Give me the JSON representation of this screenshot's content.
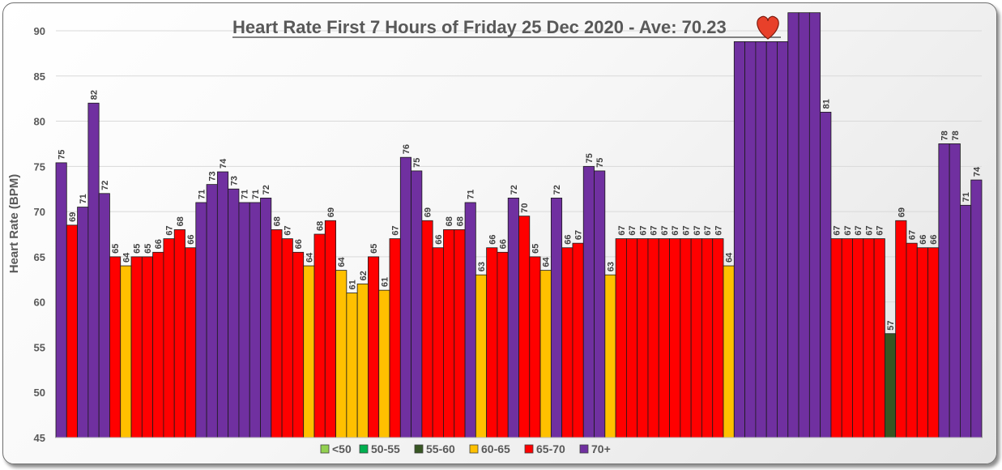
{
  "chart_data": {
    "type": "bar",
    "title": "Heart Rate First 7 Hours of Friday 25 Dec 2020 - Ave: 70.23",
    "ylabel": "Heart Rate (BPM)",
    "xlabel": "",
    "ylim": [
      45,
      90
    ],
    "yticks": [
      "45",
      "50",
      "55",
      "60",
      "65",
      "70",
      "75",
      "80",
      "85",
      "90"
    ],
    "grid": true,
    "legend_position": "bottom",
    "legend": [
      {
        "label": "<50",
        "color": "#92d050"
      },
      {
        "label": "50-55",
        "color": "#00b050"
      },
      {
        "label": "55-60",
        "color": "#375623"
      },
      {
        "label": "60-65",
        "color": "#ffc000"
      },
      {
        "label": "65-70",
        "color": "#ff0000"
      },
      {
        "label": "70+",
        "color": "#7030a0"
      }
    ],
    "values": [
      75.4,
      68.5,
      70.5,
      82,
      72,
      65,
      64,
      65,
      65,
      65.5,
      67,
      68,
      66,
      71,
      73,
      74.4,
      72.5,
      71,
      71,
      71.5,
      68,
      67,
      65.5,
      64,
      67.5,
      69,
      63.5,
      61,
      62,
      65,
      61.3,
      67,
      76,
      74.5,
      69,
      66,
      68,
      68,
      71,
      63,
      66,
      65.5,
      71.5,
      69.5,
      65,
      63.5,
      71.5,
      66,
      66.5,
      75,
      74.5,
      63,
      67,
      67,
      67,
      67,
      67,
      67,
      67,
      67,
      67,
      67,
      64,
      88.8,
      88.8,
      88.8,
      88.8,
      88.8,
      92,
      92,
      92,
      81,
      67,
      67,
      67,
      67,
      67,
      56.5,
      69,
      66.5,
      66,
      66,
      77.5,
      77.5,
      70.7,
      73.5
    ],
    "labels": [
      "75",
      "69",
      "71",
      "82",
      "72",
      "65",
      "64",
      "65",
      "65",
      "66",
      "67",
      "68",
      "66",
      "71",
      "73",
      "74",
      "73",
      "71",
      "71",
      "72",
      "68",
      "67",
      "66",
      "64",
      "68",
      "69",
      "64",
      "61",
      "62",
      "65",
      "61",
      "67",
      "76",
      "75",
      "69",
      "66",
      "68",
      "68",
      "71",
      "63",
      "66",
      "66",
      "72",
      "70",
      "65",
      "64",
      "72",
      "66",
      "67",
      "75",
      "75",
      "63",
      "67",
      "67",
      "67",
      "67",
      "67",
      "67",
      "67",
      "67",
      "67",
      "67",
      "64",
      "",
      "",
      "",
      "",
      "",
      "",
      "",
      "",
      "81",
      "67",
      "67",
      "67",
      "67",
      "67",
      "57",
      "69",
      "67",
      "66",
      "66",
      "78",
      "78",
      "71",
      "74"
    ],
    "colors": [
      "#7030a0",
      "#ff0000",
      "#7030a0",
      "#7030a0",
      "#7030a0",
      "#ff0000",
      "#ffc000",
      "#ff0000",
      "#ff0000",
      "#ff0000",
      "#ff0000",
      "#ff0000",
      "#ff0000",
      "#7030a0",
      "#7030a0",
      "#7030a0",
      "#7030a0",
      "#7030a0",
      "#7030a0",
      "#7030a0",
      "#ff0000",
      "#ff0000",
      "#ff0000",
      "#ffc000",
      "#ff0000",
      "#ff0000",
      "#ffc000",
      "#ffc000",
      "#ffc000",
      "#ff0000",
      "#ffc000",
      "#ff0000",
      "#7030a0",
      "#7030a0",
      "#ff0000",
      "#ff0000",
      "#ff0000",
      "#ff0000",
      "#7030a0",
      "#ffc000",
      "#ff0000",
      "#ff0000",
      "#7030a0",
      "#ff0000",
      "#ff0000",
      "#ffc000",
      "#7030a0",
      "#ff0000",
      "#ff0000",
      "#7030a0",
      "#7030a0",
      "#ffc000",
      "#ff0000",
      "#ff0000",
      "#ff0000",
      "#ff0000",
      "#ff0000",
      "#ff0000",
      "#ff0000",
      "#ff0000",
      "#ff0000",
      "#ff0000",
      "#ffc000",
      "#7030a0",
      "#7030a0",
      "#7030a0",
      "#7030a0",
      "#7030a0",
      "#7030a0",
      "#7030a0",
      "#7030a0",
      "#7030a0",
      "#ff0000",
      "#ff0000",
      "#ff0000",
      "#ff0000",
      "#ff0000",
      "#375623",
      "#ff0000",
      "#ff0000",
      "#ff0000",
      "#ff0000",
      "#7030a0",
      "#7030a0",
      "#7030a0",
      "#7030a0"
    ]
  }
}
